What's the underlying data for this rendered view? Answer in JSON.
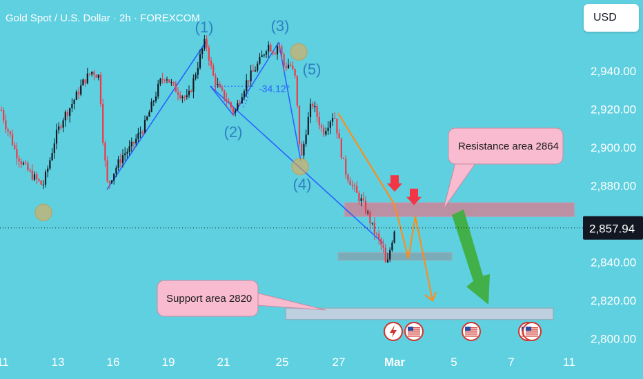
{
  "chart_data": {
    "type": "candlestick",
    "title": "Gold Spot / U.S. Dollar · 2h · FOREXCOM",
    "currency": "USD",
    "last_price": "2,857.94",
    "ylim": [
      2795,
      2965
    ],
    "y_ticks": [
      "2,940.00",
      "2,920.00",
      "2,900.00",
      "2,880.00",
      "2,860.00",
      "2,840.00",
      "2,820.00",
      "2,800.00"
    ],
    "y_tick_values": [
      2940,
      2920,
      2900,
      2880,
      2860,
      2840,
      2820,
      2800
    ],
    "x_ticks": [
      "11",
      "13",
      "16",
      "19",
      "21",
      "25",
      "27",
      "Mar",
      "5",
      "7",
      "11"
    ],
    "price_path": [
      [
        0,
        2922
      ],
      [
        8,
        2912
      ],
      [
        15,
        2906
      ],
      [
        22,
        2898
      ],
      [
        32,
        2892
      ],
      [
        40,
        2888
      ],
      [
        50,
        2884
      ],
      [
        62,
        2880
      ],
      [
        70,
        2890
      ],
      [
        80,
        2905
      ],
      [
        92,
        2916
      ],
      [
        100,
        2920
      ],
      [
        112,
        2928
      ],
      [
        122,
        2935
      ],
      [
        134,
        2940
      ],
      [
        144,
        2937
      ],
      [
        150,
        2900
      ],
      [
        156,
        2880
      ],
      [
        166,
        2888
      ],
      [
        178,
        2896
      ],
      [
        190,
        2900
      ],
      [
        200,
        2906
      ],
      [
        210,
        2912
      ],
      [
        220,
        2922
      ],
      [
        232,
        2934
      ],
      [
        240,
        2938
      ],
      [
        250,
        2932
      ],
      [
        262,
        2928
      ],
      [
        272,
        2925
      ],
      [
        282,
        2937
      ],
      [
        292,
        2950
      ],
      [
        298,
        2956
      ],
      [
        308,
        2938
      ],
      [
        318,
        2930
      ],
      [
        330,
        2924
      ],
      [
        340,
        2918
      ],
      [
        350,
        2928
      ],
      [
        358,
        2935
      ],
      [
        368,
        2940
      ],
      [
        378,
        2946
      ],
      [
        388,
        2954
      ],
      [
        398,
        2950
      ],
      [
        404,
        2955
      ],
      [
        412,
        2942
      ],
      [
        420,
        2944
      ],
      [
        428,
        2936
      ],
      [
        436,
        2892
      ],
      [
        444,
        2910
      ],
      [
        452,
        2924
      ],
      [
        460,
        2916
      ],
      [
        468,
        2908
      ],
      [
        476,
        2913
      ],
      [
        484,
        2918
      ],
      [
        492,
        2902
      ],
      [
        500,
        2888
      ],
      [
        508,
        2882
      ],
      [
        516,
        2876
      ],
      [
        524,
        2872
      ],
      [
        532,
        2866
      ],
      [
        540,
        2858
      ],
      [
        548,
        2852
      ],
      [
        556,
        2846
      ],
      [
        560,
        2836
      ],
      [
        566,
        2848
      ],
      [
        572,
        2858
      ]
    ],
    "series": [
      {
        "name": "",
        "values": [
          2922,
          2884,
          2940,
          2880,
          2956,
          2918,
          2955,
          2892,
          2918,
          2836,
          2858
        ]
      }
    ],
    "zones": [
      {
        "from": 2864,
        "to": 2871,
        "color": "#c48a9c"
      },
      {
        "from": 2841,
        "to": 2845,
        "color": "#7fa8b4"
      },
      {
        "from": 2810,
        "to": 2816,
        "color": "#c9cfe0"
      }
    ],
    "wave_labels": [
      "(1)",
      "(2)",
      "(3)",
      "(4)",
      "(5)"
    ],
    "angle_label": "-34.12°",
    "annotations": [
      {
        "text": "Resistance area 2864",
        "price": 2864
      },
      {
        "text": "Support area 2820",
        "price": 2820
      }
    ],
    "event_icons": [
      "lightning-icon",
      "us-flag-icon",
      "us-flag-icon",
      "us-flag-icon"
    ],
    "colors": {
      "background": "#5fd0e0",
      "candle_up": "#131722",
      "candle_down": "#f23645",
      "wave_line": "#2962ff",
      "projection": "#ff8c1a",
      "down_arrow": "#f23645",
      "target_arrow": "#3fae3f",
      "callout": "#f8bbd0",
      "highlight": "#f5a742"
    },
    "grid": false,
    "legend": "none"
  }
}
